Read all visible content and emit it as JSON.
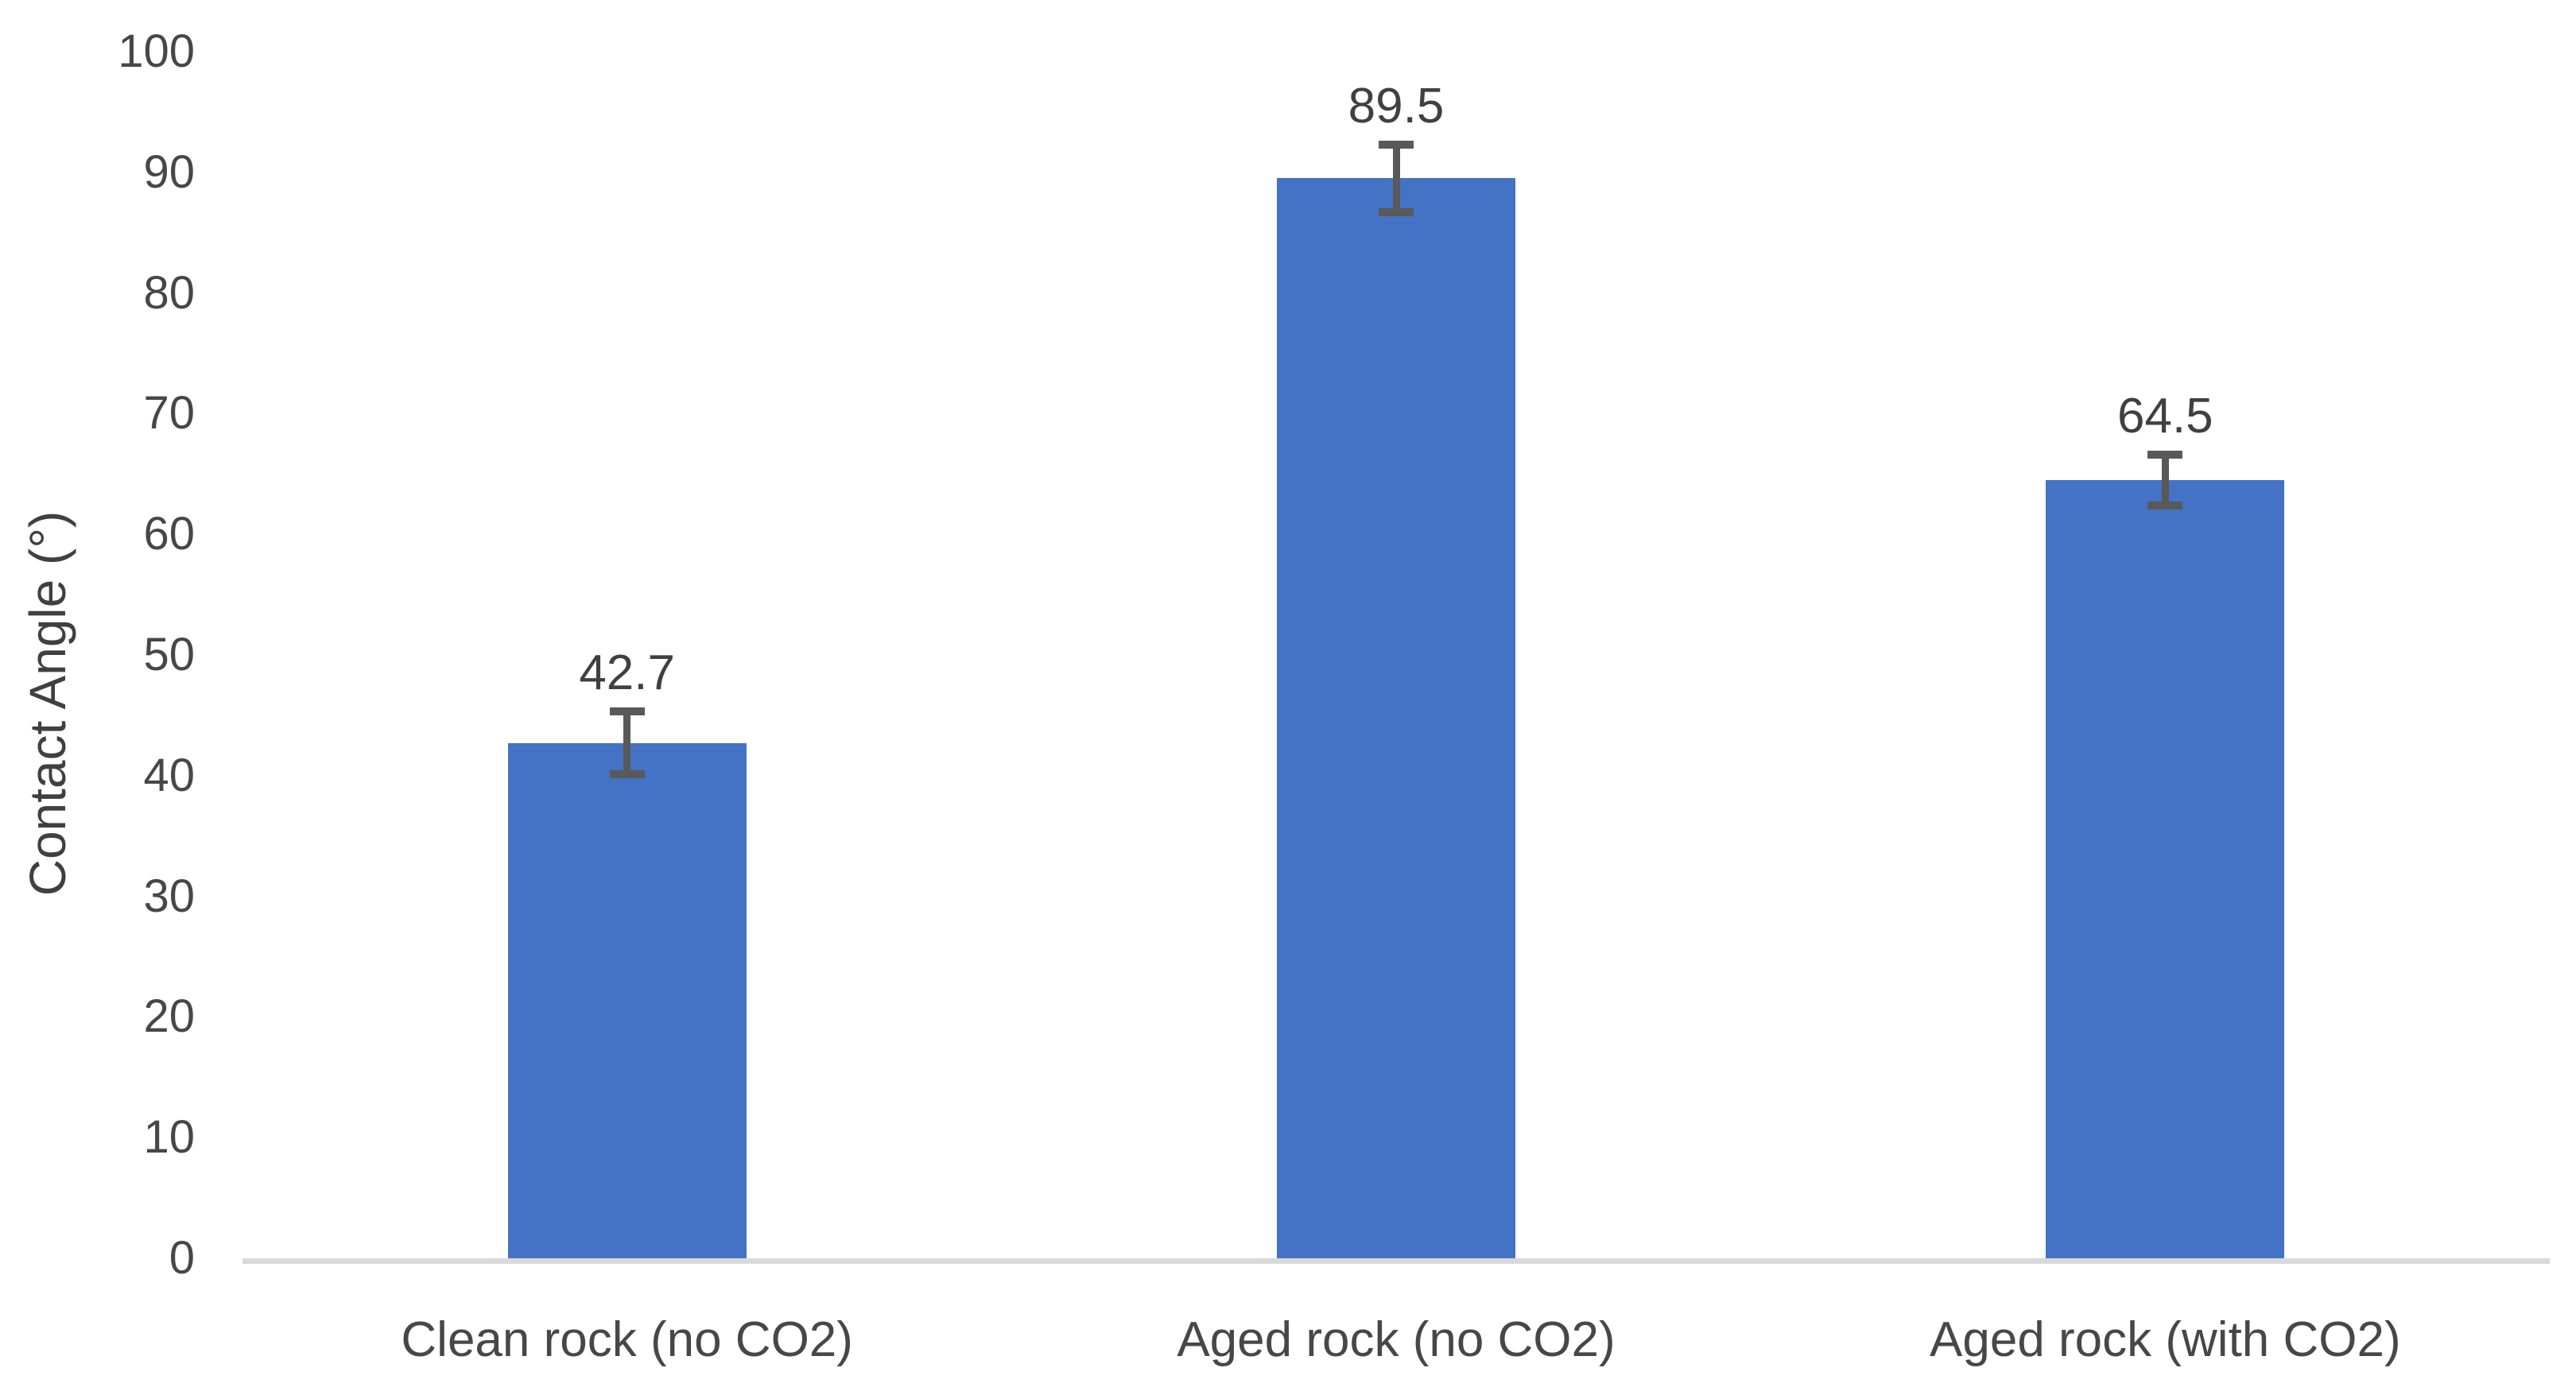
{
  "chart_data": {
    "type": "bar",
    "title": "",
    "ylabel": "Contact Angle (°)",
    "xlabel": "",
    "categories": [
      "Clean rock (no CO2)",
      "Aged rock (no CO2)",
      "Aged rock (with CO2)"
    ],
    "series": [
      {
        "name": "Contact Angle",
        "values": [
          42.7,
          89.5,
          64.5
        ],
        "errors": [
          2.6,
          2.8,
          2.1
        ],
        "data_labels": [
          "42.7",
          "89.5",
          "64.5"
        ]
      }
    ],
    "ylim": [
      0,
      100
    ],
    "ytick_step": 10,
    "ytick_labels": [
      "0",
      "10",
      "20",
      "30",
      "40",
      "50",
      "60",
      "70",
      "80",
      "90",
      "100"
    ],
    "grid": false,
    "legend": false,
    "colors": {
      "bar": "#4472C4",
      "error_bar": "#595959",
      "axis_line": "#D9D9D9",
      "tick_text": "#474747",
      "label_text": "#404040"
    }
  }
}
